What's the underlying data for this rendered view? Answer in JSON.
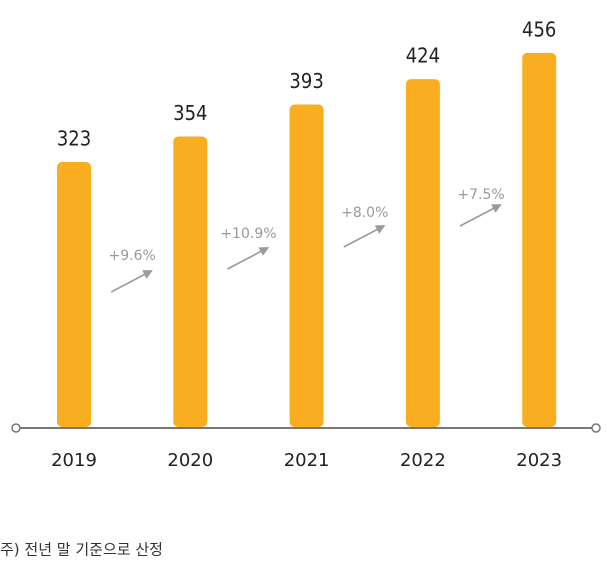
{
  "chart_data": {
    "type": "bar",
    "categories": [
      "2019",
      "2020",
      "2021",
      "2022",
      "2023"
    ],
    "values": [
      323,
      354,
      393,
      424,
      456
    ],
    "color": "#f9ae22",
    "annotations": [
      "+9.6%",
      "+10.9%",
      "+8.0%",
      "+7.5%"
    ],
    "footnote": "주) 전년 말 기준으로 산정"
  }
}
